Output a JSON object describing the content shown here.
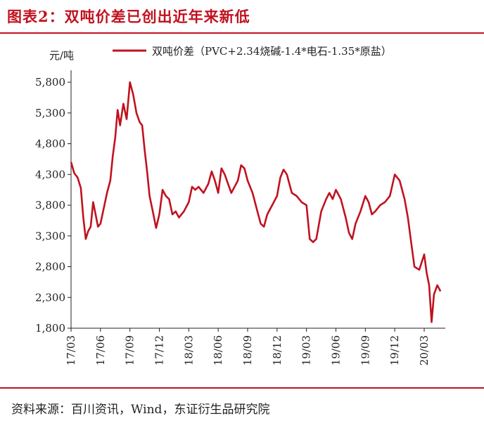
{
  "figure": {
    "title": "图表2：双吨价差已创出近年来新低",
    "source": "资料来源：百川资讯，Wind，东证衍生品研究院"
  },
  "chart_data": {
    "type": "line",
    "ylabel": "元/吨",
    "ylim": [
      1800,
      5800
    ],
    "yticks": [
      1800,
      2300,
      2800,
      3300,
      3800,
      4300,
      4800,
      5300,
      5800
    ],
    "ytick_labels": [
      "1,800",
      "2,300",
      "2,800",
      "3,300",
      "3,800",
      "4,300",
      "4,800",
      "5,300",
      "5,800"
    ],
    "xticks": [
      "17/03",
      "17/06",
      "17/09",
      "17/12",
      "18/03",
      "18/06",
      "18/09",
      "18/12",
      "19/03",
      "19/06",
      "19/09",
      "19/12",
      "20/03"
    ],
    "grid": false,
    "legend": "top",
    "color": "#c0121f",
    "series": [
      {
        "name": "双吨价差（PVC+2.34烧碱-1.4*电石-1.35*原盐）",
        "points": [
          [
            "17/03",
            4500
          ],
          [
            "17/03",
            4320
          ],
          [
            "17/03",
            4250
          ],
          [
            "17/04",
            4080
          ],
          [
            "17/04",
            3600
          ],
          [
            "17/04",
            3250
          ],
          [
            "17/04",
            3380
          ],
          [
            "17/05",
            3450
          ],
          [
            "17/05",
            3850
          ],
          [
            "17/05",
            3650
          ],
          [
            "17/05",
            3450
          ],
          [
            "17/06",
            3500
          ],
          [
            "17/06",
            3750
          ],
          [
            "17/06",
            4000
          ],
          [
            "17/07",
            4200
          ],
          [
            "17/07",
            4600
          ],
          [
            "17/07",
            4900
          ],
          [
            "17/07",
            5350
          ],
          [
            "17/08",
            5100
          ],
          [
            "17/08",
            5450
          ],
          [
            "17/08",
            5200
          ],
          [
            "17/09",
            5800
          ],
          [
            "17/09",
            5600
          ],
          [
            "17/09",
            5300
          ],
          [
            "17/10",
            5150
          ],
          [
            "17/10",
            5100
          ],
          [
            "17/10",
            4700
          ],
          [
            "17/10",
            4350
          ],
          [
            "17/11",
            3950
          ],
          [
            "17/11",
            3700
          ],
          [
            "17/11",
            3430
          ],
          [
            "17/12",
            3650
          ],
          [
            "17/12",
            4050
          ],
          [
            "17/12",
            3950
          ],
          [
            "18/01",
            3900
          ],
          [
            "18/01",
            3650
          ],
          [
            "18/01",
            3700
          ],
          [
            "18/02",
            3600
          ],
          [
            "18/02",
            3700
          ],
          [
            "18/03",
            3850
          ],
          [
            "18/03",
            4100
          ],
          [
            "18/03",
            4050
          ],
          [
            "18/04",
            4100
          ],
          [
            "18/04",
            4000
          ],
          [
            "18/05",
            4150
          ],
          [
            "18/05",
            4350
          ],
          [
            "18/05",
            4200
          ],
          [
            "18/06",
            4000
          ],
          [
            "18/06",
            4400
          ],
          [
            "18/06",
            4300
          ],
          [
            "18/07",
            4150
          ],
          [
            "18/07",
            4000
          ],
          [
            "18/07",
            4100
          ],
          [
            "18/08",
            4200
          ],
          [
            "18/08",
            4450
          ],
          [
            "18/08",
            4400
          ],
          [
            "18/09",
            4200
          ],
          [
            "18/09",
            4000
          ],
          [
            "18/10",
            3700
          ],
          [
            "18/10",
            3500
          ],
          [
            "18/10",
            3450
          ],
          [
            "18/11",
            3650
          ],
          [
            "18/11",
            3800
          ],
          [
            "18/12",
            3950
          ],
          [
            "18/12",
            4250
          ],
          [
            "18/12",
            4380
          ],
          [
            "19/01",
            4300
          ],
          [
            "19/01",
            4000
          ],
          [
            "19/02",
            3950
          ],
          [
            "19/02",
            3850
          ],
          [
            "19/03",
            3800
          ],
          [
            "19/03",
            3250
          ],
          [
            "19/03",
            3200
          ],
          [
            "19/04",
            3250
          ],
          [
            "19/04",
            3700
          ],
          [
            "19/05",
            3900
          ],
          [
            "19/05",
            4000
          ],
          [
            "19/05",
            3900
          ],
          [
            "19/06",
            4050
          ],
          [
            "19/06",
            3900
          ],
          [
            "19/07",
            3600
          ],
          [
            "19/07",
            3350
          ],
          [
            "19/07",
            3250
          ],
          [
            "19/08",
            3500
          ],
          [
            "19/08",
            3700
          ],
          [
            "19/09",
            3950
          ],
          [
            "19/09",
            3850
          ],
          [
            "19/09",
            3650
          ],
          [
            "19/10",
            3700
          ],
          [
            "19/10",
            3800
          ],
          [
            "19/11",
            3850
          ],
          [
            "19/11",
            3950
          ],
          [
            "19/12",
            4300
          ],
          [
            "19/12",
            4200
          ],
          [
            "20/01",
            3900
          ],
          [
            "20/01",
            3600
          ],
          [
            "20/01",
            3200
          ],
          [
            "20/02",
            2800
          ],
          [
            "20/02",
            2750
          ],
          [
            "20/03",
            3000
          ],
          [
            "20/03",
            2700
          ],
          [
            "20/03",
            2500
          ],
          [
            "20/03",
            1900
          ],
          [
            "20/04",
            2350
          ],
          [
            "20/04",
            2500
          ],
          [
            "20/04",
            2400
          ]
        ]
      }
    ]
  }
}
